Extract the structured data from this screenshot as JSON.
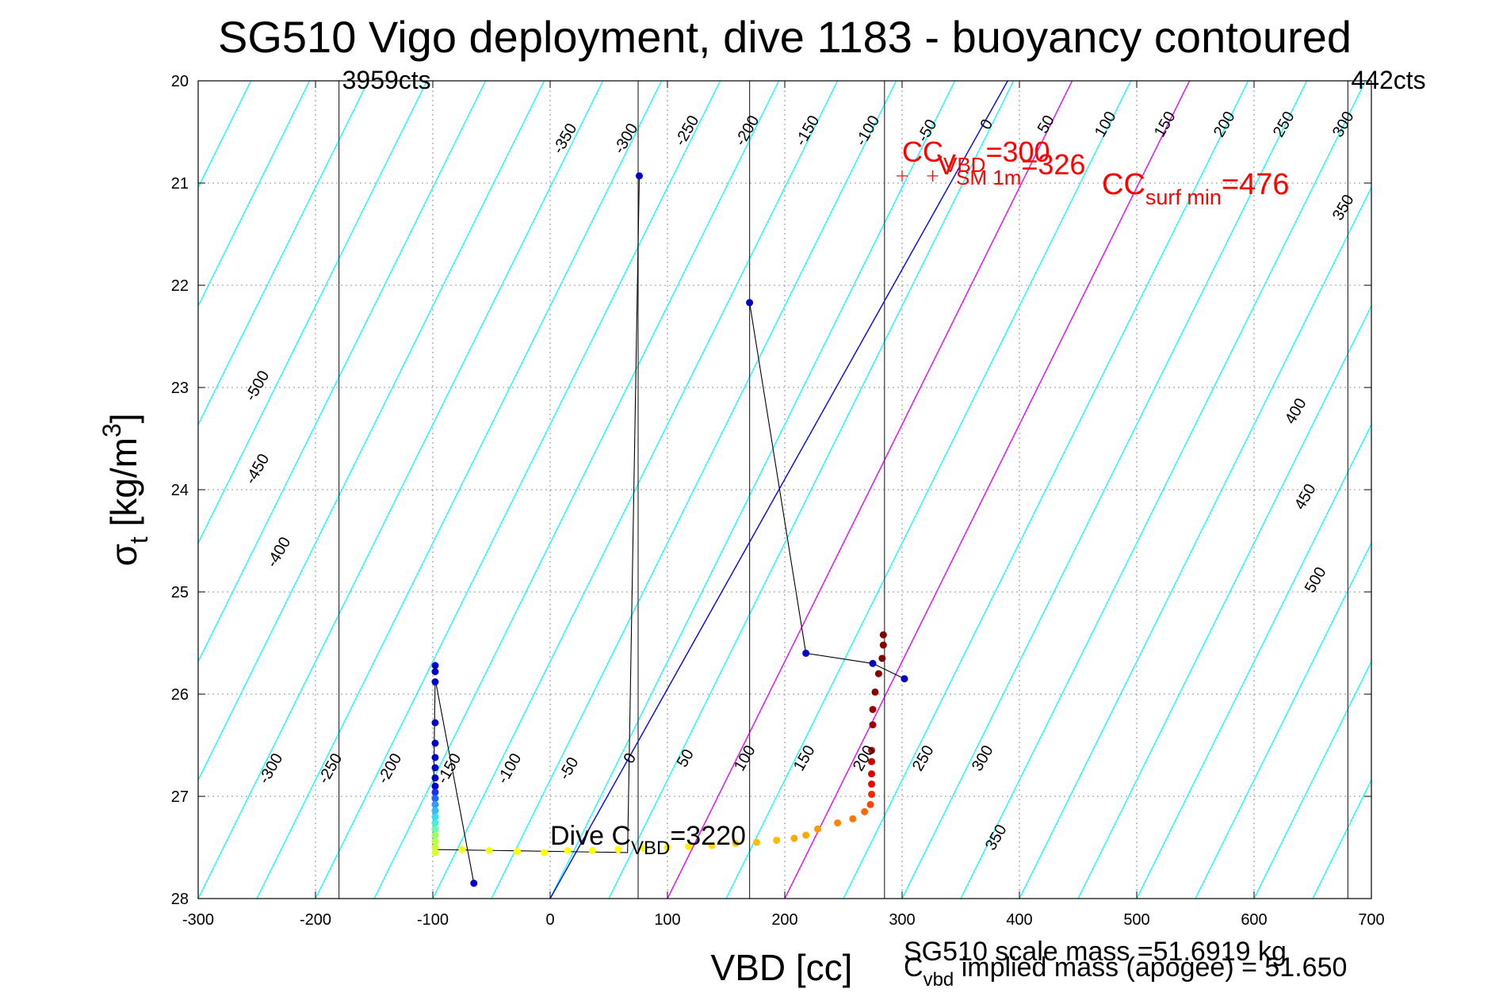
{
  "chart_data": {
    "type": "scatter",
    "title": "SG510 Vigo deployment, dive 1183 - buoyancy contoured",
    "xlabel": "VBD [cc]",
    "ylabel": "σ_t [kg/m^3]",
    "xlim": [
      -300,
      700
    ],
    "ylim": [
      20,
      28
    ],
    "y_reversed": true,
    "xticks": [
      -300,
      -200,
      -100,
      0,
      100,
      200,
      300,
      400,
      500,
      600,
      700
    ],
    "yticks": [
      20,
      21,
      22,
      23,
      24,
      25,
      26,
      27,
      28
    ],
    "grid": true,
    "colors": {
      "contour": "#00ffff",
      "zero_buoyancy": "#0000ff",
      "magenta": "#ff00ff",
      "annotation_red": "#ff0000",
      "black": "#000000"
    },
    "contour_levels": {
      "top": [
        "-350",
        "-300",
        "-250",
        "-200",
        "-150",
        "-100",
        "-50",
        "0",
        "50",
        "100",
        "150",
        "200",
        "250",
        "300",
        "350"
      ],
      "left": [
        "-500",
        "-450",
        "-400"
      ],
      "bottom": [
        "-300",
        "-250",
        "-200",
        "-150",
        "-100",
        "-50",
        "0",
        "50",
        "100",
        "150",
        "200",
        "250",
        "300",
        "350"
      ],
      "right": [
        "400",
        "450",
        "500"
      ]
    },
    "vertical_lines": [
      {
        "x": -180,
        "label": "3959cts"
      },
      {
        "x": 680,
        "label": "442cts"
      },
      {
        "x": 285,
        "label": ""
      },
      {
        "x": 75,
        "label": ""
      },
      {
        "x": 170,
        "label": ""
      }
    ],
    "magenta_lines": [
      {
        "x_at_28": 100,
        "x_at_20": 445
      },
      {
        "x_at_28": 200,
        "x_at_20": 545
      }
    ],
    "zero_buoyancy_line": {
      "x_at_28": 0,
      "x_at_20": 390
    },
    "trajectory": [
      {
        "x": 76,
        "y": 20.93
      },
      {
        "x": 66,
        "y": 27.55
      },
      {
        "x": -100,
        "y": 27.52
      },
      {
        "x": -98,
        "y": 25.85
      },
      {
        "x": -65,
        "y": 27.85
      }
    ],
    "trajectory_2": [
      {
        "x": 170,
        "y": 22.17
      },
      {
        "x": 218,
        "y": 25.6
      },
      {
        "x": 275,
        "y": 25.7
      },
      {
        "x": 302,
        "y": 25.85
      }
    ],
    "points": [
      {
        "x": 76,
        "y": 20.93,
        "c": "#0000cc"
      },
      {
        "x": 170,
        "y": 22.17,
        "c": "#0000cc"
      },
      {
        "x": 218,
        "y": 25.6,
        "c": "#0000cc"
      },
      {
        "x": 275,
        "y": 25.7,
        "c": "#0000cc"
      },
      {
        "x": 302,
        "y": 25.85,
        "c": "#0000cc"
      },
      {
        "x": -65,
        "y": 27.85,
        "c": "#0000cc"
      },
      {
        "x": -98,
        "y": 25.72,
        "c": "#0000cc"
      },
      {
        "x": -98,
        "y": 25.78,
        "c": "#0000cc"
      },
      {
        "x": -98,
        "y": 25.88,
        "c": "#0000cc"
      },
      {
        "x": -98,
        "y": 26.28,
        "c": "#0000cc"
      },
      {
        "x": -98,
        "y": 26.48,
        "c": "#0000cc"
      },
      {
        "x": -98,
        "y": 26.62,
        "c": "#0000cc"
      },
      {
        "x": -98,
        "y": 26.72,
        "c": "#0000cc"
      },
      {
        "x": -98,
        "y": 26.82,
        "c": "#0000cc"
      },
      {
        "x": -98,
        "y": 26.9,
        "c": "#0000cc"
      },
      {
        "x": -98,
        "y": 26.96,
        "c": "#1133ff"
      },
      {
        "x": -98,
        "y": 27.02,
        "c": "#2266ff"
      },
      {
        "x": -98,
        "y": 27.08,
        "c": "#3399ff"
      },
      {
        "x": -98,
        "y": 27.14,
        "c": "#33bbff"
      },
      {
        "x": -98,
        "y": 27.2,
        "c": "#33ddff"
      },
      {
        "x": -98,
        "y": 27.26,
        "c": "#44eedd"
      },
      {
        "x": -98,
        "y": 27.32,
        "c": "#66ffaa"
      },
      {
        "x": -98,
        "y": 27.38,
        "c": "#99ff66"
      },
      {
        "x": -98,
        "y": 27.44,
        "c": "#bbff44"
      },
      {
        "x": -98,
        "y": 27.5,
        "c": "#ccff33"
      },
      {
        "x": -98,
        "y": 27.55,
        "c": "#ddff22"
      },
      {
        "x": -75,
        "y": 27.52,
        "c": "#eeff11"
      },
      {
        "x": -52,
        "y": 27.53,
        "c": "#eeff11"
      },
      {
        "x": -28,
        "y": 27.54,
        "c": "#ffff00"
      },
      {
        "x": -5,
        "y": 27.55,
        "c": "#ffff00"
      },
      {
        "x": 15,
        "y": 27.53,
        "c": "#ffff00"
      },
      {
        "x": 36,
        "y": 27.53,
        "c": "#ffff00"
      },
      {
        "x": 58,
        "y": 27.52,
        "c": "#ffff00"
      },
      {
        "x": 80,
        "y": 27.51,
        "c": "#ffff00"
      },
      {
        "x": 100,
        "y": 27.5,
        "c": "#ffee00"
      },
      {
        "x": 118,
        "y": 27.49,
        "c": "#ffee00"
      },
      {
        "x": 138,
        "y": 27.48,
        "c": "#ffdd00"
      },
      {
        "x": 158,
        "y": 27.46,
        "c": "#ffcc00"
      },
      {
        "x": 176,
        "y": 27.45,
        "c": "#ffbb00"
      },
      {
        "x": 193,
        "y": 27.43,
        "c": "#ffbb00"
      },
      {
        "x": 208,
        "y": 27.41,
        "c": "#ffaa00"
      },
      {
        "x": 218,
        "y": 27.38,
        "c": "#ffaa00"
      },
      {
        "x": 228,
        "y": 27.32,
        "c": "#ff9900"
      },
      {
        "x": 245,
        "y": 27.26,
        "c": "#ff8800"
      },
      {
        "x": 258,
        "y": 27.22,
        "c": "#ff7700"
      },
      {
        "x": 268,
        "y": 27.15,
        "c": "#ff6600"
      },
      {
        "x": 273,
        "y": 27.08,
        "c": "#ff4400"
      },
      {
        "x": 274,
        "y": 26.98,
        "c": "#ff2200"
      },
      {
        "x": 274,
        "y": 26.88,
        "c": "#ee0000"
      },
      {
        "x": 274,
        "y": 26.78,
        "c": "#dd0000"
      },
      {
        "x": 274,
        "y": 26.66,
        "c": "#cc0000"
      },
      {
        "x": 274,
        "y": 26.55,
        "c": "#bb0000"
      },
      {
        "x": 275,
        "y": 26.3,
        "c": "#990000"
      },
      {
        "x": 275,
        "y": 26.15,
        "c": "#990000"
      },
      {
        "x": 277,
        "y": 25.98,
        "c": "#880000"
      },
      {
        "x": 280,
        "y": 25.8,
        "c": "#880000"
      },
      {
        "x": 283,
        "y": 25.65,
        "c": "#800000"
      },
      {
        "x": 284,
        "y": 25.52,
        "c": "#800000"
      },
      {
        "x": 284,
        "y": 25.42,
        "c": "#800000"
      }
    ],
    "red_markers": [
      {
        "x": 300,
        "y": 20.93
      },
      {
        "x": 326,
        "y": 20.93
      }
    ],
    "annotations": {
      "cc_vbd": {
        "pre": "CC",
        "sub": "VBD",
        "post": "=300"
      },
      "vsm": {
        "pre": "V",
        "sub": "SM 1m",
        "post": "=326"
      },
      "cc_surf": {
        "pre": "CC",
        "sub": "surf min",
        "post": "=476"
      },
      "dive_cvbd": {
        "pre": "Dive C",
        "sub": "VBD",
        "post": "=3220"
      },
      "scale_mass": "SG510 scale mass =51.6919 kg",
      "implied_mass": {
        "pre": "C",
        "sub": "vbd",
        "post": " implied mass (apogee) = 51.650"
      }
    }
  }
}
